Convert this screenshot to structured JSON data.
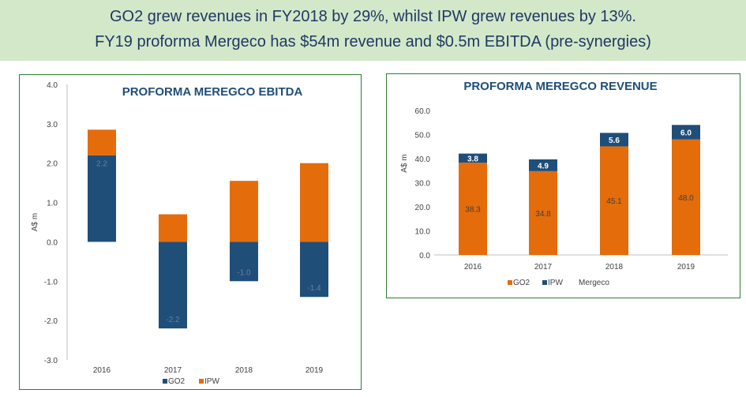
{
  "banner": {
    "line1": "GO2 grew revenues in FY2018 by 29%, whilst IPW grew revenues by 13%.",
    "line2": "FY19 proforma Mergeco has $54m revenue and $0.5m EBITDA (pre-synergies)"
  },
  "colors": {
    "go2": "#1f4e79",
    "ipw": "#e46c0a",
    "title": "#1f4e79",
    "banner_bg": "#d3e8c9"
  },
  "chart_data": [
    {
      "type": "bar",
      "stacked": true,
      "title": "PROFORMA MEREGCO EBITDA",
      "ylabel": "A$ m",
      "xlabel": "",
      "categories": [
        "2016",
        "2017",
        "2018",
        "2019"
      ],
      "ylim": [
        -3.0,
        4.0
      ],
      "yticks": [
        "4.0",
        "3.0",
        "2.0",
        "1.0",
        "0.0",
        "-1.0",
        "-2.0",
        "-3.0"
      ],
      "series": [
        {
          "name": "GO2",
          "values": [
            2.2,
            -2.2,
            -1.0,
            -1.4
          ],
          "labels": [
            "2.2",
            "-2.2",
            "-1.0",
            "-1.4"
          ]
        },
        {
          "name": "IPW",
          "values": [
            0.65,
            0.7,
            1.55,
            2.0
          ]
        }
      ],
      "legend": [
        "GO2",
        "IPW"
      ],
      "legend_position": "bottom"
    },
    {
      "type": "bar",
      "stacked": true,
      "title": "PROFORMA MEREGCO REVENUE",
      "ylabel": "A$ m",
      "xlabel": "",
      "categories": [
        "2016",
        "2017",
        "2018",
        "2019"
      ],
      "ylim": [
        0,
        60
      ],
      "yticks": [
        "60.0",
        "50.0",
        "40.0",
        "30.0",
        "20.0",
        "10.0",
        "0.0"
      ],
      "series": [
        {
          "name": "GO2",
          "values": [
            38.3,
            34.8,
            45.1,
            48.0
          ],
          "labels": [
            "38.3",
            "34.8",
            "45.1",
            "48.0"
          ]
        },
        {
          "name": "IPW",
          "values": [
            3.8,
            4.9,
            5.6,
            6.0
          ],
          "labels": [
            "3.8",
            "4.9",
            "5.6",
            "6.0"
          ]
        }
      ],
      "legend": [
        "GO2",
        "IPW",
        "Mergeco"
      ],
      "legend_position": "bottom"
    }
  ]
}
